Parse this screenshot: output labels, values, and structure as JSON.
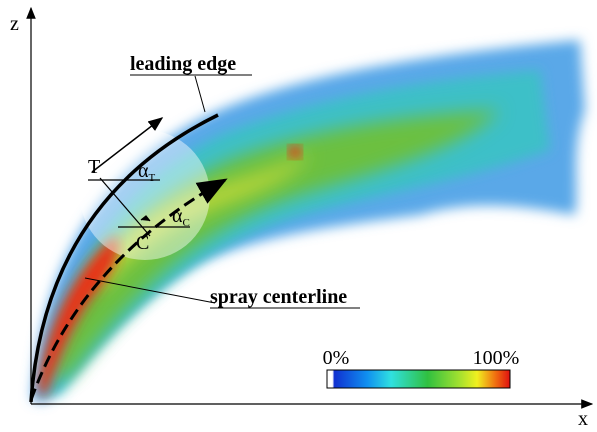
{
  "axes": {
    "vertical": "z",
    "horizontal": "x"
  },
  "annotations": {
    "leading_edge": "leading edge",
    "spray_centerline": "spray centerline"
  },
  "points": {
    "tangent_point": "T",
    "center_point": "C"
  },
  "angles": {
    "alpha_t": {
      "symbol": "α",
      "subscript": "T"
    },
    "alpha_c": {
      "symbol": "α",
      "subscript": "C"
    }
  },
  "colorbar": {
    "range": [
      0,
      100
    ],
    "ticks": [
      {
        "value": 0,
        "label": "0%"
      },
      {
        "value": 100,
        "label": "100%"
      }
    ]
  }
}
